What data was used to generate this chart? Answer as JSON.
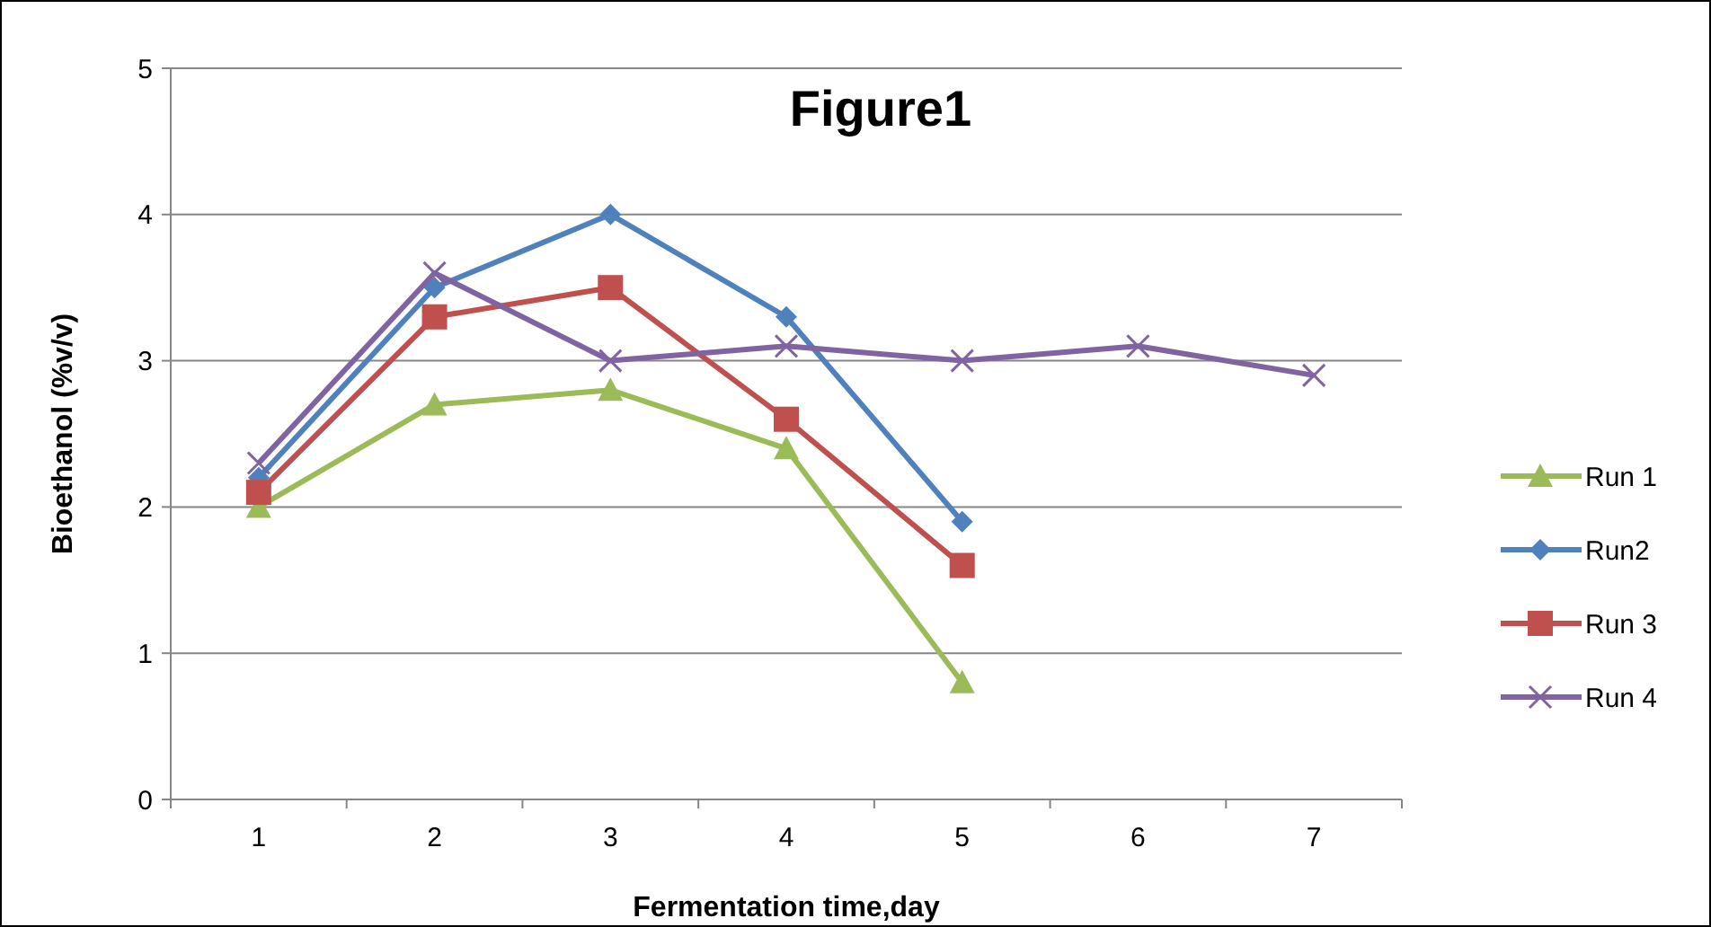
{
  "chart_data": {
    "type": "line",
    "title": "Figure1",
    "xlabel": "Fermentation time,day",
    "ylabel": "Bioethanol (%v/v)",
    "categories": [
      "1",
      "2",
      "3",
      "4",
      "5",
      "6",
      "7"
    ],
    "series": [
      {
        "name": "Run 1",
        "color": "#9bbb59",
        "marker": "triangle",
        "values": [
          2.0,
          2.7,
          2.8,
          2.4,
          0.8,
          null,
          null
        ]
      },
      {
        "name": "Run2",
        "color": "#4f81bd",
        "marker": "diamond",
        "values": [
          2.2,
          3.5,
          4.0,
          3.3,
          1.9,
          null,
          null
        ]
      },
      {
        "name": "Run 3",
        "color": "#c0504d",
        "marker": "square",
        "values": [
          2.1,
          3.3,
          3.5,
          2.6,
          1.6,
          null,
          null
        ]
      },
      {
        "name": "Run 4",
        "color": "#8064a2",
        "marker": "cross",
        "values": [
          2.3,
          3.6,
          3.0,
          3.1,
          3.0,
          3.1,
          2.9
        ]
      }
    ],
    "ylim": [
      0,
      5
    ],
    "yticks": [
      0,
      1,
      2,
      3,
      4,
      5
    ],
    "grid": "y",
    "legend": "right"
  }
}
